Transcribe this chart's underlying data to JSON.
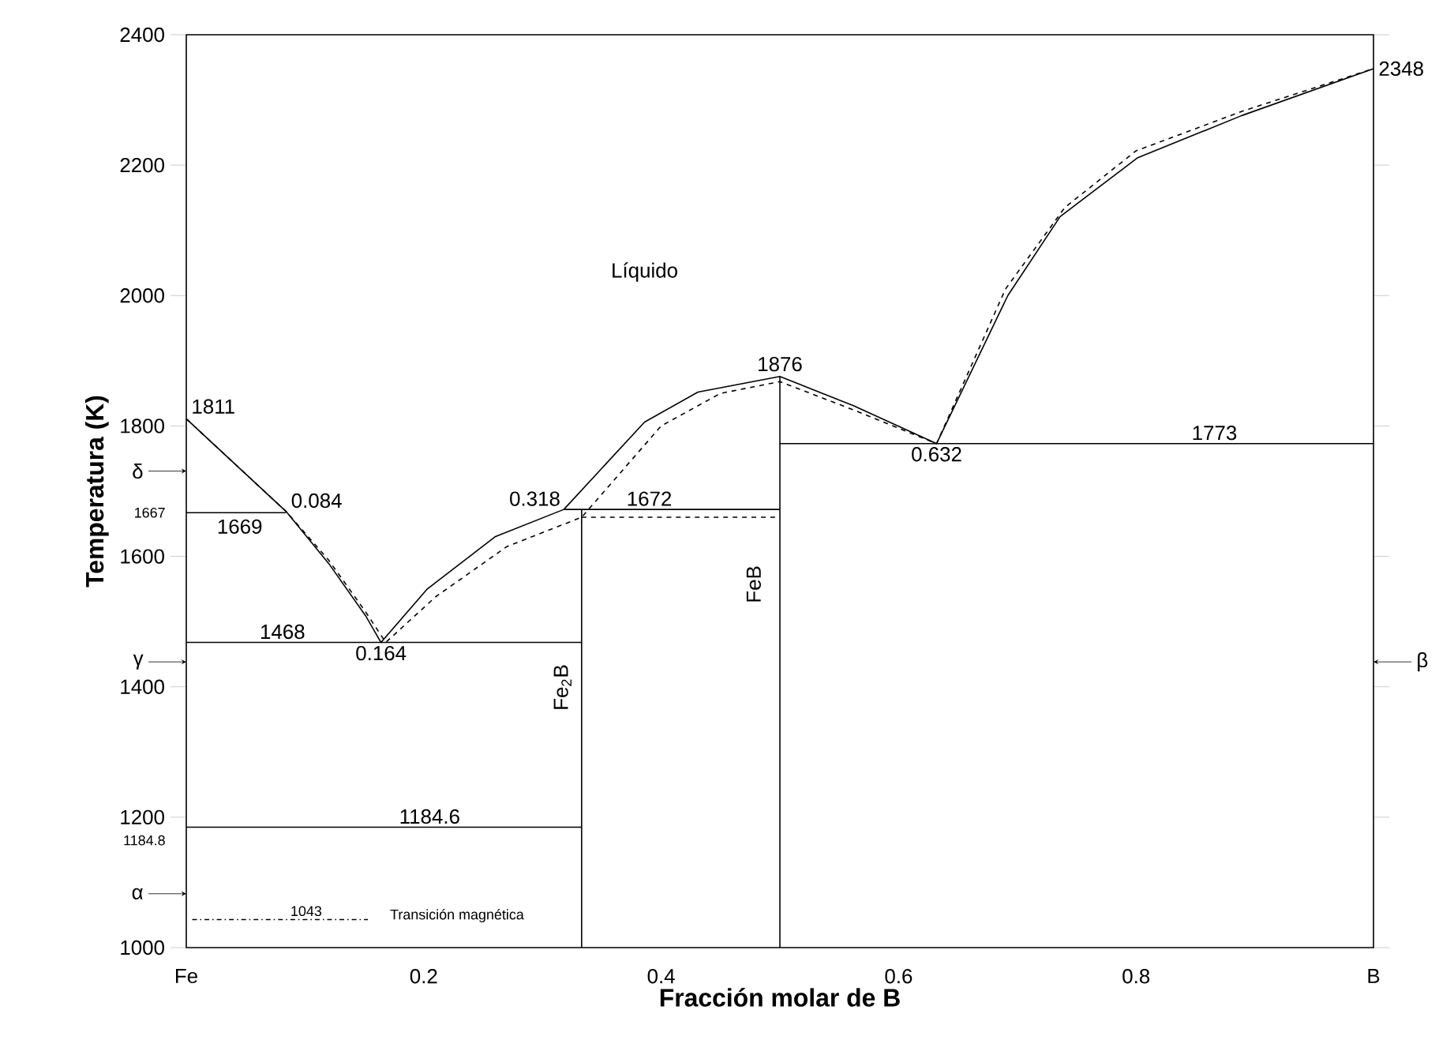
{
  "chart_data": {
    "type": "line",
    "xlabel": "Fracción molar de B",
    "ylabel": "Temperatura (K)",
    "xlim": [
      0,
      1
    ],
    "ylim": [
      1000,
      2400
    ],
    "xticks": [
      {
        "value": 0,
        "label": "Fe"
      },
      0.2,
      0.4,
      0.6,
      0.8,
      {
        "value": 1,
        "label": "B"
      }
    ],
    "yticks": [
      1000,
      1200,
      1400,
      1600,
      1800,
      2000,
      2200,
      2400
    ],
    "line_style": "solid",
    "series": [
      {
        "color": "#000000",
        "x": [
          0,
          0.084,
          0.12,
          0.151,
          0.164,
          0.203,
          0.26,
          0.318,
          0.386,
          0.431,
          0.5,
          0.562,
          0.632,
          0.692,
          0.736,
          0.801,
          0.889,
          1
        ],
        "values": [
          1811,
          1669,
          1589,
          1509,
          1468,
          1550,
          1630,
          1672,
          1806,
          1852,
          1876,
          1831,
          1773,
          2000,
          2121,
          2211,
          2276,
          2348
        ]
      },
      {
        "color": "#000000",
        "line_style": "dashed",
        "x": [
          0,
          0.084,
          0.12,
          0.151,
          0.168,
          0.21,
          0.27,
          0.333,
          0.4,
          0.45,
          0.5,
          0.56,
          0.632,
          0.69,
          0.74,
          0.8,
          0.89,
          1
        ],
        "values": [
          1811,
          1669,
          1594,
          1515,
          1468,
          1538,
          1615,
          1660,
          1800,
          1850,
          1868,
          1826,
          1773,
          2010,
          2135,
          2222,
          2283,
          2348
        ]
      },
      {
        "color": "#000000",
        "x": [
          0,
          0.084
        ],
        "values": [
          1667,
          1667
        ]
      },
      {
        "color": "#000000",
        "x": [
          0,
          0.333
        ],
        "values": [
          1468,
          1468
        ]
      },
      {
        "color": "#000000",
        "x": [
          0,
          0.333
        ],
        "values": [
          1184.6,
          1184.6
        ]
      },
      {
        "color": "#000000",
        "x": [
          0.318,
          0.5
        ],
        "values": [
          1672,
          1672
        ]
      },
      {
        "color": "#000000",
        "line_style": "dashed",
        "x": [
          0.333,
          0.5
        ],
        "values": [
          1660,
          1660
        ]
      },
      {
        "color": "#000000",
        "x": [
          0.5,
          1
        ],
        "values": [
          1773,
          1773
        ]
      },
      {
        "color": "#000000",
        "x": [
          0.333,
          0.333
        ],
        "values": [
          1000,
          1672
        ]
      },
      {
        "color": "#000000",
        "x": [
          0.5,
          0.5
        ],
        "values": [
          1000,
          1876
        ]
      },
      {
        "color": "#000000",
        "line_style": "dashdot",
        "x": [
          0.005,
          0.153
        ],
        "values": [
          1043,
          1043
        ]
      }
    ],
    "annotations": [
      "Líquido",
      {
        "text": "1811",
        "x": 0,
        "y": 1811
      },
      {
        "text": "0.084",
        "x": 0.084,
        "y": 1669
      },
      {
        "text": "1669",
        "x": 0.045,
        "y": 1667
      },
      {
        "text": "0.318",
        "x": 0.318,
        "y": 1672
      },
      {
        "text": "1672",
        "x": 0.39,
        "y": 1672
      },
      {
        "text": "1876",
        "x": 0.5,
        "y": 1876
      },
      {
        "text": "0.632",
        "x": 0.632,
        "y": 1773
      },
      {
        "text": "1773",
        "x": 0.866,
        "y": 1773
      },
      {
        "text": "2348",
        "x": 1,
        "y": 2348
      },
      {
        "text": "1468",
        "x": 0.081,
        "y": 1468
      },
      {
        "text": "0.164",
        "x": 0.164,
        "y": 1468
      },
      {
        "text": "1184.6",
        "x": 0.205,
        "y": 1184.6
      },
      {
        "text": "1043",
        "x": 0.101,
        "y": 1043
      },
      "Transición magnética",
      "Fe$_{2}$B",
      "FeB",
      {
        "text": "1667",
        "x": 0,
        "y": 1667
      },
      {
        "text": "1184.8",
        "x": 0,
        "y": 1184.8
      },
      "δ",
      "γ",
      "α",
      "β"
    ]
  }
}
